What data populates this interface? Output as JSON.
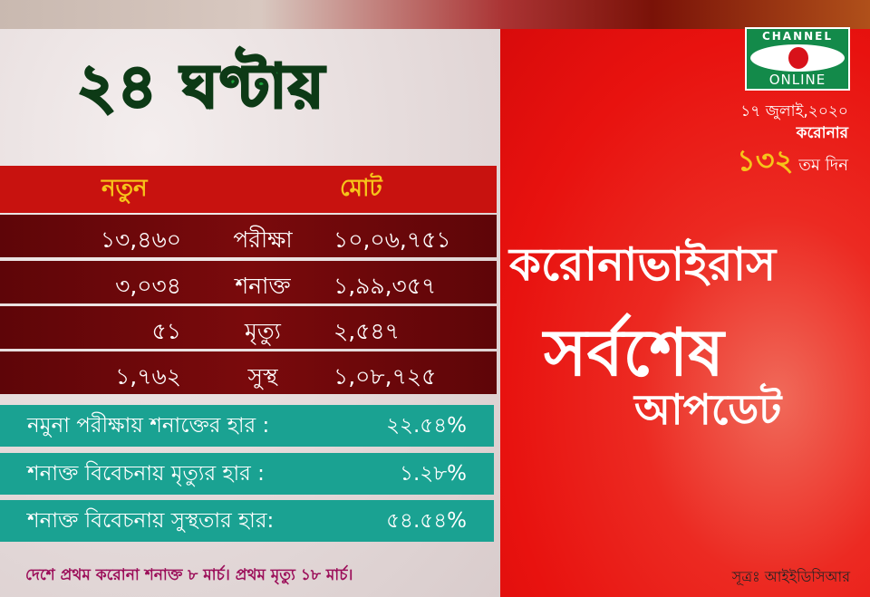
{
  "title": "২৪ ঘণ্টায়",
  "table": {
    "header_new": "নতুন",
    "header_total": "মোট",
    "rows": [
      {
        "new": "১৩,৪৬০",
        "label": "পরীক্ষা",
        "total": "১০,০৬,৭৫১"
      },
      {
        "new": "৩,০৩৪",
        "label": "শনাক্ত",
        "total": "১,৯৯,৩৫৭"
      },
      {
        "new": "৫১",
        "label": "মৃত্যু",
        "total": "২,৫৪৭"
      },
      {
        "new": "১,৭৬২",
        "label": "সুস্থ",
        "total": "১,০৮,৭২৫"
      }
    ]
  },
  "rates": [
    {
      "label": "নমুনা পরীক্ষায় শনাক্তের হার :",
      "value": "২২.৫৪%"
    },
    {
      "label": "শনাক্ত বিবেচনায় মৃত্যুর হার :",
      "value": "১.২৮%"
    },
    {
      "label": "শনাক্ত বিবেচনায় সুস্থতার হার:",
      "value": "৫৪.৫৪%"
    }
  ],
  "footer": "দেশে প্রথম করোনা শনাক্ত ৮ মার্চ। প্রথম মৃত্যু ১৮ মার্চ।",
  "logo": {
    "top": "CHANNEL",
    "bottom": "ONLINE"
  },
  "date": "১৭ জুলাই,২০২০",
  "corona_label": "করোনার",
  "day_number": "১৩২",
  "day_suffix": "তম দিন",
  "headline": {
    "line1": "করোনাভাইরাস",
    "line2": "সর্বশেষ",
    "line3": "আপডেট"
  },
  "source": "সূত্রঃ আইইডিসিআর",
  "colors": {
    "red": "#e8120f",
    "teal": "#1aa292",
    "maroon": "#6a070a",
    "green": "#1aa33a",
    "yellow": "#f6c41a"
  }
}
